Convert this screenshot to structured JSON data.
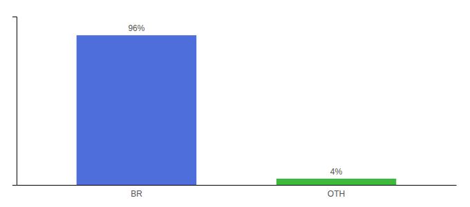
{
  "chart_data": {
    "type": "bar",
    "categories": [
      "BR",
      "OTH"
    ],
    "values": [
      96,
      4
    ],
    "value_labels": [
      "96%",
      "4%"
    ],
    "colors": [
      "#4d6edb",
      "#3dba3d"
    ],
    "ylim": [
      0,
      108
    ],
    "yticks": [],
    "grid": false,
    "data_labels": true,
    "tick_labels": "x"
  }
}
